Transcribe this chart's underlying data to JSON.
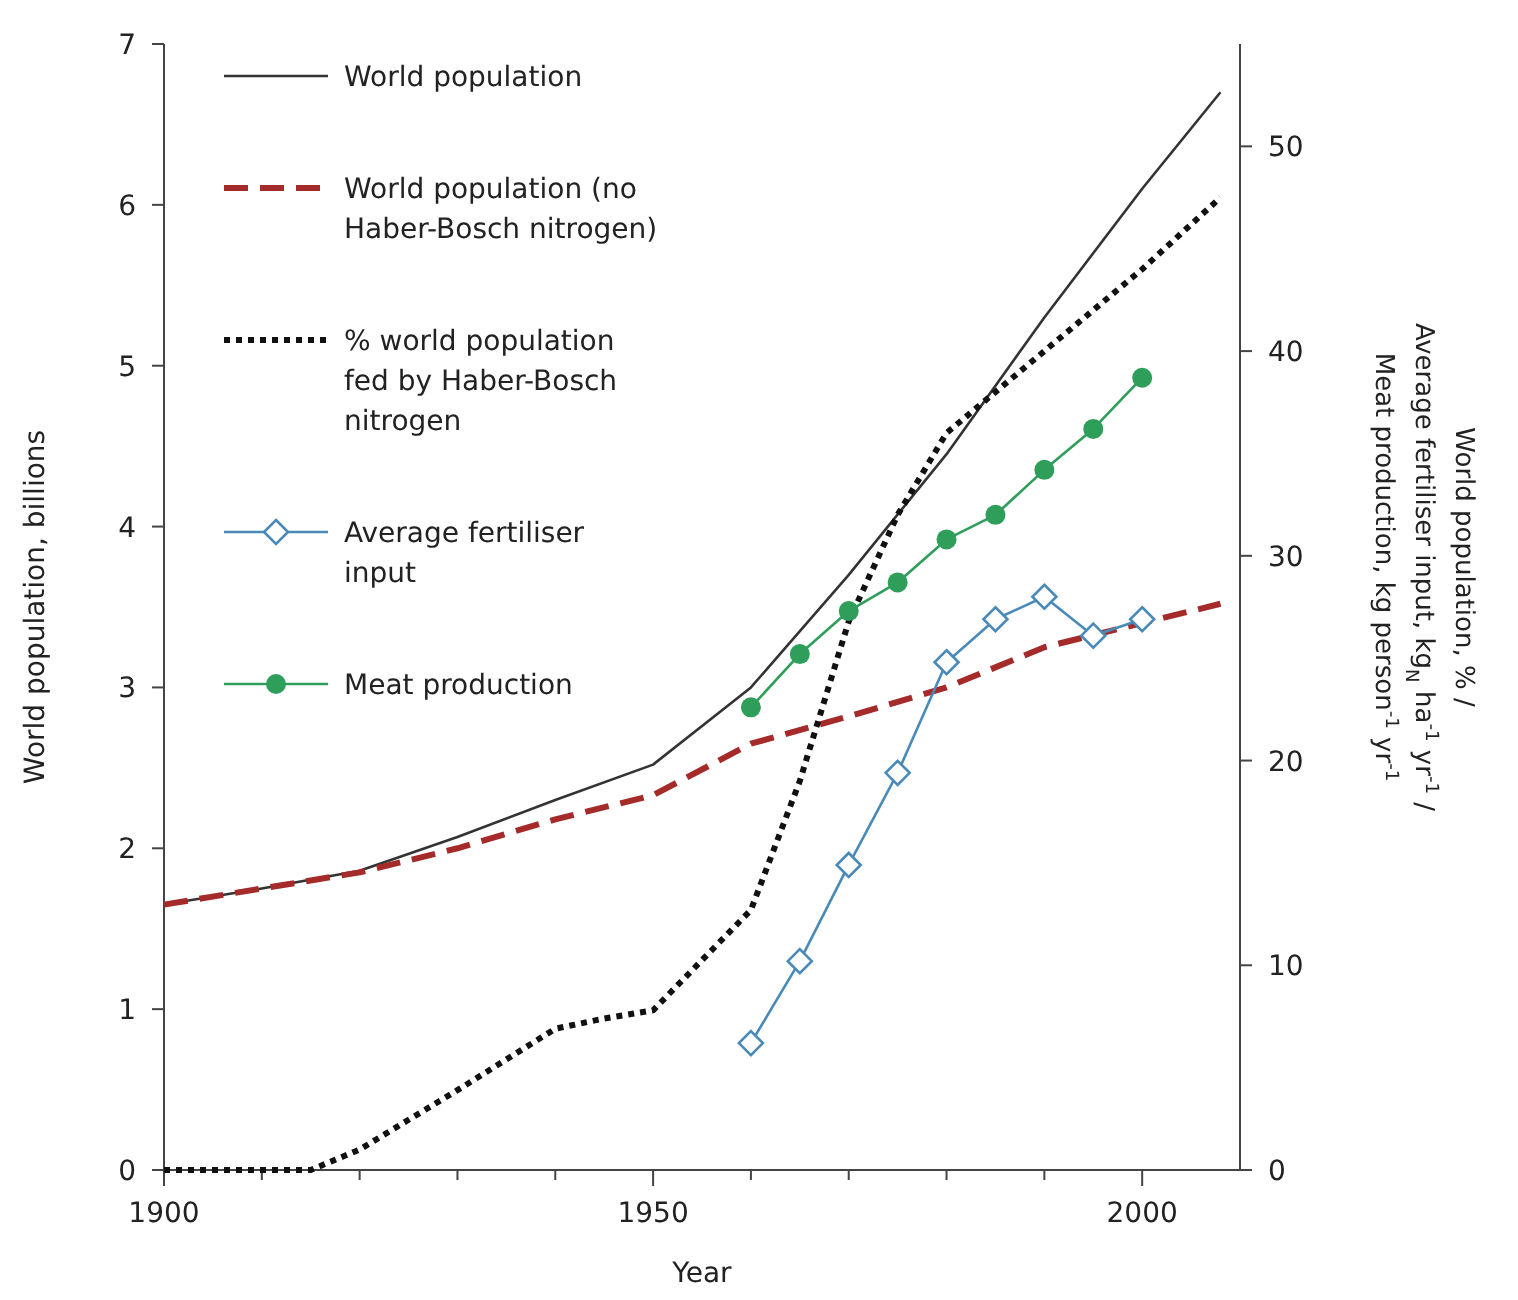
{
  "chart_data": {
    "type": "line",
    "xlabel": "Year",
    "ylabel": "World population, billions",
    "y2label": "World population, % /\nAverage fertiliser input, kg$_{N}$ ha$^{-1}$ yr$^{-1}$ /\nMeat production, kg person$^{-1}$ yr$^{-1}$",
    "xlim": [
      1900,
      2010
    ],
    "xticks": [
      1900,
      {
        "value": 1910,
        "label": null
      },
      {
        "value": 1920,
        "label": null
      },
      {
        "value": 1930,
        "label": null
      },
      {
        "value": 1940,
        "label": null
      },
      1950,
      {
        "value": 1960,
        "label": null
      },
      {
        "value": 1970,
        "label": null
      },
      {
        "value": 1980,
        "label": null
      },
      {
        "value": 1990,
        "label": null
      },
      2000
    ],
    "ylim": [
      0,
      7
    ],
    "yticks": [
      0,
      1,
      2,
      3,
      4,
      5,
      6,
      7
    ],
    "y2lim": [
      0,
      55
    ],
    "y2ticks": [
      0,
      10,
      20,
      30,
      40,
      50
    ],
    "grid": false,
    "legend": "top left",
    "series": [
      {
        "name": "World population",
        "color": "#333333",
        "line_style": "solid",
        "marker": "none",
        "x": [
          1900,
          1910,
          1920,
          1930,
          1940,
          1950,
          1960,
          1970,
          1980,
          1990,
          2000,
          2008
        ],
        "values": [
          1.65,
          1.75,
          1.86,
          2.07,
          2.3,
          2.52,
          3.0,
          3.7,
          4.45,
          5.3,
          6.1,
          6.7
        ]
      },
      {
        "name": "World population (no Haber-Bosch nitrogen)",
        "color": "#a52a2a",
        "line_style": "dashed",
        "marker": "none",
        "x": [
          1900,
          1920,
          1930,
          1940,
          1950,
          1960,
          1970,
          1980,
          1990,
          2000,
          2008
        ],
        "values": [
          1.65,
          1.85,
          2.0,
          2.18,
          2.33,
          2.65,
          2.82,
          3.0,
          3.25,
          3.4,
          3.52
        ]
      },
      {
        "name": "% world population fed by Haber-Bosch nitrogen",
        "color": "#111111",
        "line_style": "dotted",
        "marker": "none",
        "axis": "y2",
        "x": [
          1900,
          1915,
          1920,
          1930,
          1940,
          1945,
          1950,
          1960,
          1965,
          1970,
          1975,
          1980,
          1990,
          2000,
          2008
        ],
        "values": [
          0,
          0,
          1,
          3.9,
          6.9,
          7.4,
          7.8,
          12.7,
          19,
          26.8,
          32,
          36,
          40,
          44,
          47.5
        ]
      },
      {
        "name": "Average fertiliser input",
        "color": "#4a8ab8",
        "line_style": "solid",
        "marker": "diamond",
        "axis": "y2",
        "x": [
          1960,
          1965,
          1970,
          1975,
          1980,
          1985,
          1990,
          1995,
          2000
        ],
        "values": [
          6.2,
          10.2,
          14.9,
          19.4,
          24.8,
          26.9,
          28.0,
          26.1,
          26.9
        ]
      },
      {
        "name": "Meat production",
        "color": "#2e9e5a",
        "line_style": "solid",
        "marker": "circle",
        "axis": "y2",
        "x": [
          1960,
          1965,
          1970,
          1975,
          1980,
          1985,
          1990,
          1995,
          2000
        ],
        "values": [
          22.6,
          25.2,
          27.3,
          28.7,
          30.8,
          32.0,
          34.2,
          36.2,
          38.7
        ]
      }
    ]
  }
}
